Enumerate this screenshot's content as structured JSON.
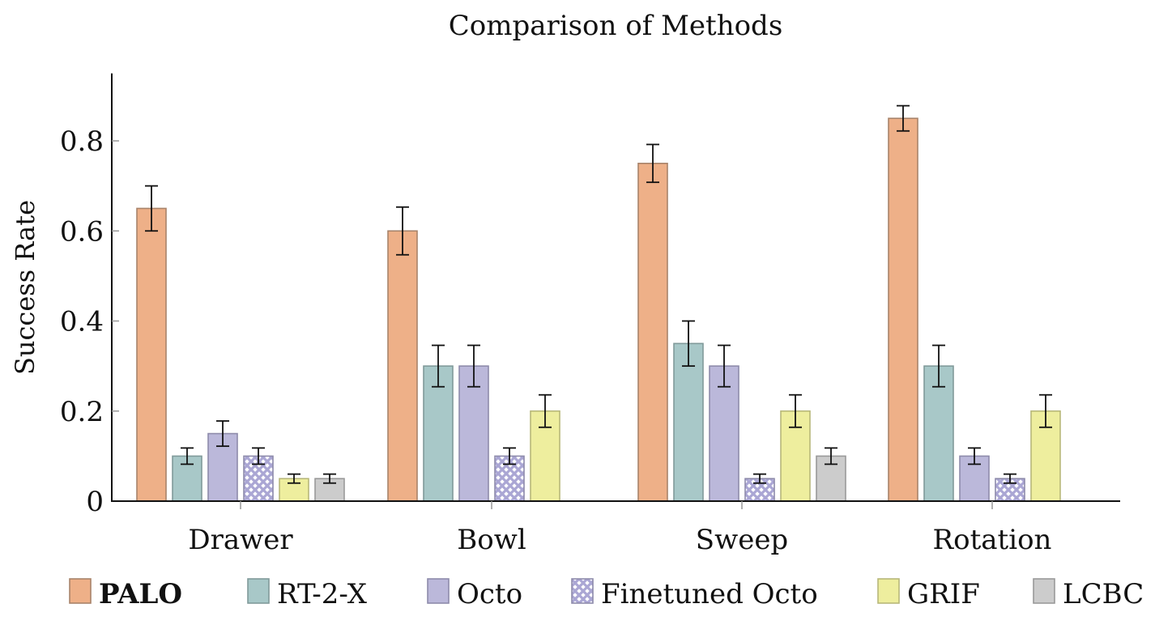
{
  "chart_data": {
    "type": "bar",
    "title": "Comparison of Methods",
    "xlabel": "",
    "ylabel": "Success Rate",
    "ylim": [
      0,
      0.95
    ],
    "yticks": [
      {
        "value": 0,
        "label": "0"
      },
      {
        "value": 0.2,
        "label": "0.2"
      },
      {
        "value": 0.4,
        "label": "0.4"
      },
      {
        "value": 0.6,
        "label": "0.6"
      },
      {
        "value": 0.8,
        "label": "0.8"
      }
    ],
    "grid": false,
    "legend_position": "bottom",
    "categories": [
      "Drawer",
      "Bowl",
      "Sweep",
      "Rotation"
    ],
    "series": [
      {
        "name": "PALO",
        "bold": true,
        "color": "#eeb088",
        "stroke": "#a8836a",
        "pattern": false,
        "values": [
          0.65,
          0.6,
          0.75,
          0.85
        ],
        "errors": [
          0.05,
          0.053,
          0.042,
          0.028
        ]
      },
      {
        "name": "RT-2-X",
        "bold": false,
        "color": "#a8c8c8",
        "stroke": "#809a9a",
        "pattern": false,
        "values": [
          0.1,
          0.3,
          0.35,
          0.3
        ],
        "errors": [
          0.018,
          0.046,
          0.05,
          0.046
        ]
      },
      {
        "name": "Octo",
        "bold": false,
        "color": "#bbb8da",
        "stroke": "#8e8bab",
        "pattern": false,
        "values": [
          0.15,
          0.3,
          0.3,
          0.1
        ],
        "errors": [
          0.028,
          0.046,
          0.046,
          0.018
        ]
      },
      {
        "name": "Finetuned Octo",
        "bold": false,
        "color": "#bbb8da",
        "stroke": "#8e8bab",
        "pattern": true,
        "values": [
          0.1,
          0.1,
          0.05,
          0.05
        ],
        "errors": [
          0.018,
          0.018,
          0.01,
          0.01
        ]
      },
      {
        "name": "GRIF",
        "bold": false,
        "color": "#eeee9e",
        "stroke": "#b8b87a",
        "pattern": false,
        "values": [
          0.05,
          0.2,
          0.2,
          0.2
        ],
        "errors": [
          0.01,
          0.036,
          0.036,
          0.036
        ]
      },
      {
        "name": "LCBC",
        "bold": false,
        "color": "#cccccc",
        "stroke": "#999999",
        "pattern": false,
        "values": [
          0.05,
          0.0,
          0.1,
          0.0
        ],
        "errors": [
          0.01,
          0,
          0.018,
          0
        ]
      }
    ]
  }
}
